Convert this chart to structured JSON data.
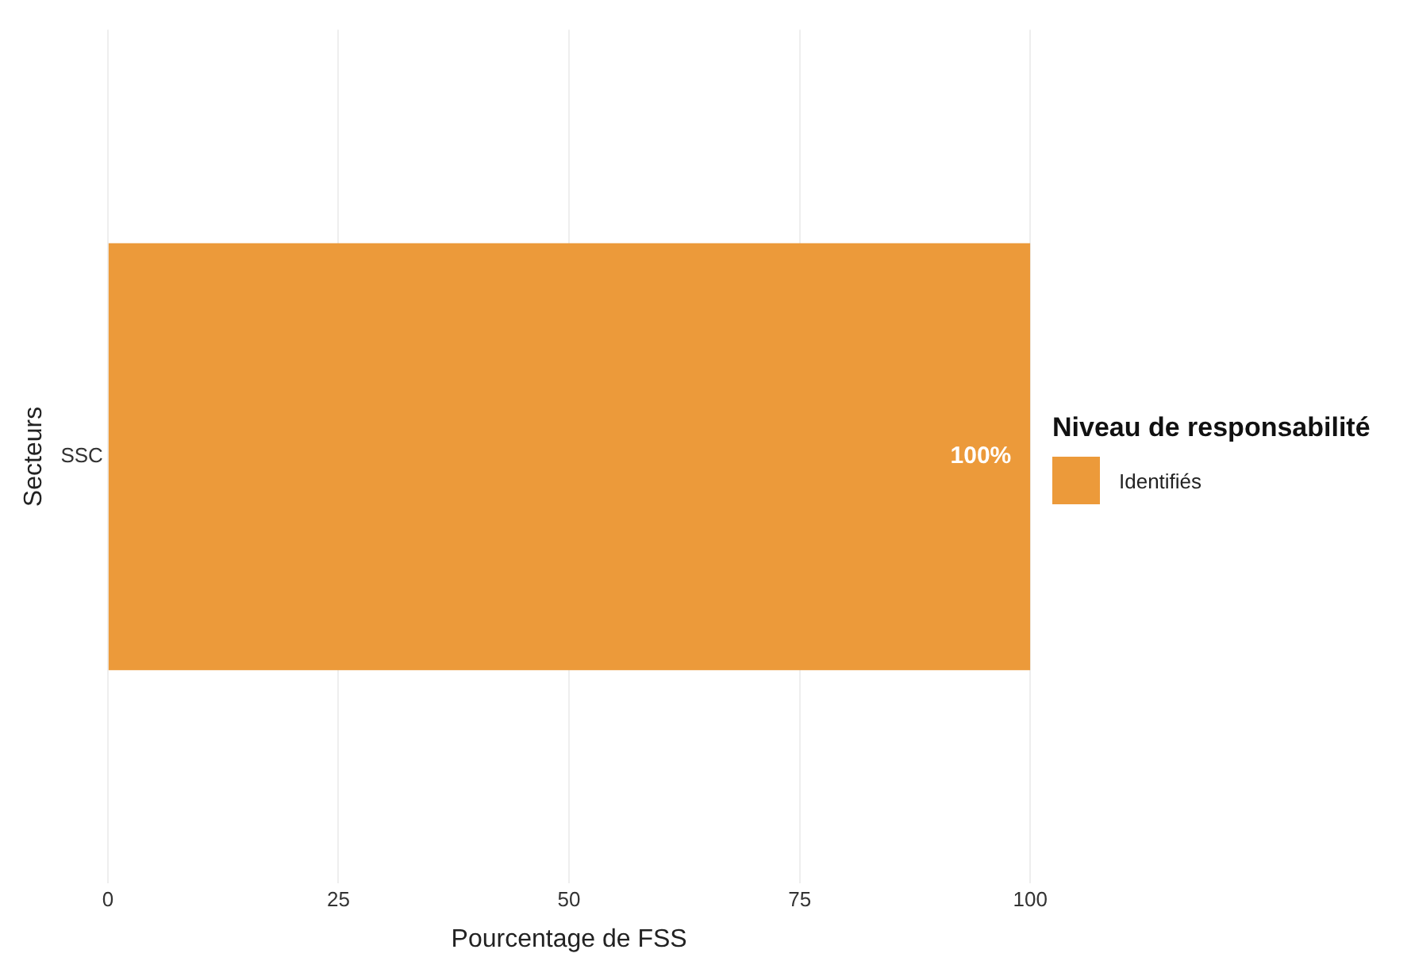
{
  "chart_data": {
    "type": "bar",
    "orientation": "horizontal",
    "xlabel": "Pourcentage de FSS",
    "ylabel": "Secteurs",
    "legend_title": "Niveau de responsabilité",
    "categories": [
      "SSC"
    ],
    "series": [
      {
        "name": "Identifiés",
        "color": "#ec9a3a",
        "values": [
          100
        ],
        "value_labels": [
          "100%"
        ]
      }
    ],
    "xlim": [
      0,
      100
    ],
    "xticks": [
      0,
      25,
      50,
      75,
      100
    ],
    "grid": "x",
    "legend": "right"
  }
}
